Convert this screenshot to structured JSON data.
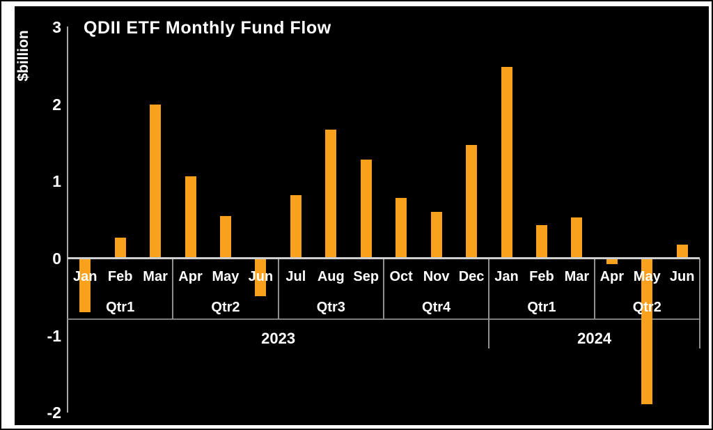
{
  "chart_data": {
    "type": "bar",
    "title": "QDII ETF Monthly Fund Flow",
    "ylabel": "$billion",
    "ylim": [
      -2,
      3
    ],
    "yticks": [
      3,
      2,
      1,
      0,
      -1,
      -2
    ],
    "bar_color": "#F9A11C",
    "background_color": "#000000",
    "text_color": "#FFFFFF",
    "grid": false,
    "legend": "none",
    "years": [
      {
        "label": "2023",
        "quarters": [
          {
            "label": "Qtr1",
            "months": [
              "Jan",
              "Feb",
              "Mar"
            ],
            "values": [
              -0.7,
              0.27,
              2.0
            ]
          },
          {
            "label": "Qtr2",
            "months": [
              "Apr",
              "May",
              "Jun"
            ],
            "values": [
              1.07,
              0.55,
              -0.49
            ]
          },
          {
            "label": "Qtr3",
            "months": [
              "Jul",
              "Aug",
              "Sep"
            ],
            "values": [
              0.82,
              1.67,
              1.28
            ]
          },
          {
            "label": "Qtr4",
            "months": [
              "Oct",
              "Nov",
              "Dec"
            ],
            "values": [
              0.79,
              0.61,
              1.47
            ]
          }
        ]
      },
      {
        "label": "2024",
        "quarters": [
          {
            "label": "Qtr1",
            "months": [
              "Jan",
              "Feb",
              "Mar"
            ],
            "values": [
              2.49,
              0.43,
              0.53
            ]
          },
          {
            "label": "Qtr2",
            "months": [
              "Apr",
              "May",
              "Jun"
            ],
            "values": [
              -0.07,
              -1.89,
              0.18
            ]
          }
        ]
      }
    ]
  }
}
